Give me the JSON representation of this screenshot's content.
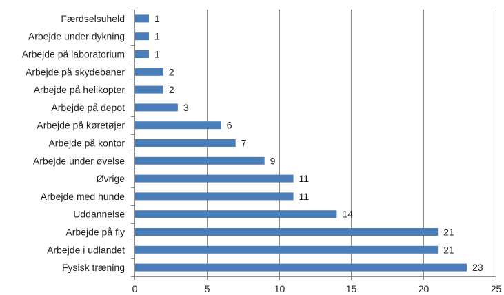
{
  "chart_data": {
    "type": "bar",
    "orientation": "horizontal",
    "title": "",
    "xlabel": "",
    "ylabel": "",
    "categories": [
      "Færdselsuheld",
      "Arbejde under dykning",
      "Arbejde på laboratorium",
      "Arbejde på skydebaner",
      "Arbejde på helikopter",
      "Arbejde på depot",
      "Arbejde på køretøjer",
      "Arbejde på kontor",
      "Arbejde under øvelse",
      "Øvrige",
      "Arbejde med hunde",
      "Uddannelse",
      "Arbejde på fly",
      "Arbejde i udlandet",
      "Fysisk træning"
    ],
    "values": [
      1,
      1,
      1,
      2,
      2,
      3,
      6,
      7,
      9,
      11,
      11,
      14,
      21,
      21,
      23
    ],
    "value_labels": [
      "1",
      "1",
      "1",
      "2",
      "2",
      "3",
      "6",
      "7",
      "9",
      "11",
      "11",
      "14",
      "21",
      "21",
      "23"
    ],
    "xlim": [
      0,
      25
    ],
    "x_ticks": [
      "0",
      "5",
      "10",
      "15",
      "20",
      "25"
    ],
    "x_tick_values": [
      0,
      5,
      10,
      15,
      20,
      25
    ],
    "grid": "vertical",
    "legend": "none",
    "colors": {
      "bar": "#4a7ebb",
      "grid": "#8c8c8c",
      "axis": "#8c8c8c",
      "text": "#222222"
    }
  }
}
